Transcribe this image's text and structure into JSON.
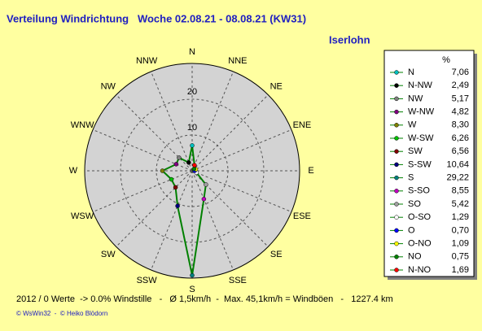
{
  "chart_data": {
    "type": "radar",
    "title": "Verteilung Windrichtung   Woche 02.08.21 - 08.08.21 (KW31)",
    "subtitle": "Iserlohn",
    "categories": [
      "N",
      "NNE",
      "NE",
      "ENE",
      "E",
      "ESE",
      "SE",
      "SSE",
      "S",
      "SSW",
      "SW",
      "WSW",
      "W",
      "WNW",
      "NW",
      "NNW"
    ],
    "rlim": [
      0,
      30
    ],
    "rticks": [
      10,
      20
    ],
    "line_color": "#008000",
    "legend": {
      "title": "%",
      "names": [
        "N",
        "N-NW",
        "NW",
        "W-NW",
        "W",
        "W-SW",
        "SW",
        "S-SW",
        "S",
        "S-SO",
        "SO",
        "O-SO",
        "O",
        "O-NO",
        "NO",
        "N-NO"
      ],
      "colors": [
        "#00c0c0",
        "#000000",
        "#808080",
        "#800080",
        "#808000",
        "#00c000",
        "#800000",
        "#000080",
        "#008080",
        "#c000c0",
        "#a0a0a0",
        "#ffffff",
        "#0000ff",
        "#ffff00",
        "#008000",
        "#ff0000"
      ]
    },
    "values": [
      7.06,
      2.49,
      5.17,
      4.82,
      8.3,
      6.26,
      6.56,
      10.64,
      29.22,
      8.55,
      5.42,
      1.29,
      0.7,
      1.09,
      0.75,
      1.69
    ],
    "value_labels": [
      "7,06",
      "2,49",
      "5,17",
      "4,82",
      "8,30",
      "6,26",
      "6,56",
      "10,64",
      "29,22",
      "8,55",
      "5,42",
      "1,29",
      "0,70",
      "1,09",
      "0,75",
      "1,69"
    ],
    "footer": "2012 / 0 Werte  -> 0.0% Windstille   -   Ø 1,5km/h  -  Max. 45,1km/h = Windböen   -   1227.4 km",
    "credits": "© WsWin32  -  © Heiko Blödorn"
  }
}
